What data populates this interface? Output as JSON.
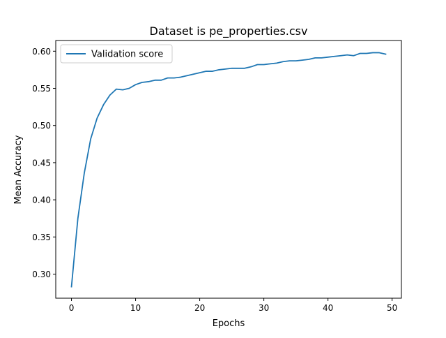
{
  "chart_data": {
    "type": "line",
    "title": "Dataset is pe_properties.csv",
    "xlabel": "Epochs",
    "ylabel": "Mean Accuracy",
    "xlim": [
      -2.45,
      51.45
    ],
    "ylim": [
      0.2676,
      0.6144
    ],
    "xticks": [
      0,
      10,
      20,
      30,
      40,
      50
    ],
    "xtick_labels": [
      "0",
      "10",
      "20",
      "30",
      "40",
      "50"
    ],
    "yticks": [
      0.3,
      0.35,
      0.4,
      0.45,
      0.5,
      0.55,
      0.6
    ],
    "ytick_labels": [
      "0.30",
      "0.35",
      "0.40",
      "0.45",
      "0.50",
      "0.55",
      "0.60"
    ],
    "grid": false,
    "legend_position": "top-left",
    "series": [
      {
        "name": "Validation score",
        "color": "#1f77b4",
        "x": [
          0,
          1,
          2,
          3,
          4,
          5,
          6,
          7,
          8,
          9,
          10,
          11,
          12,
          13,
          14,
          15,
          16,
          17,
          18,
          19,
          20,
          21,
          22,
          23,
          24,
          25,
          26,
          27,
          28,
          29,
          30,
          31,
          32,
          33,
          34,
          35,
          36,
          37,
          38,
          39,
          40,
          41,
          42,
          43,
          44,
          45,
          46,
          47,
          48,
          49
        ],
        "y": [
          0.283,
          0.375,
          0.436,
          0.482,
          0.51,
          0.528,
          0.541,
          0.549,
          0.548,
          0.55,
          0.555,
          0.558,
          0.559,
          0.561,
          0.561,
          0.564,
          0.564,
          0.565,
          0.567,
          0.569,
          0.571,
          0.573,
          0.573,
          0.575,
          0.576,
          0.577,
          0.577,
          0.577,
          0.579,
          0.582,
          0.582,
          0.583,
          0.584,
          0.586,
          0.587,
          0.587,
          0.588,
          0.589,
          0.591,
          0.591,
          0.592,
          0.593,
          0.594,
          0.595,
          0.594,
          0.597,
          0.597,
          0.598,
          0.598,
          0.596
        ]
      }
    ]
  }
}
